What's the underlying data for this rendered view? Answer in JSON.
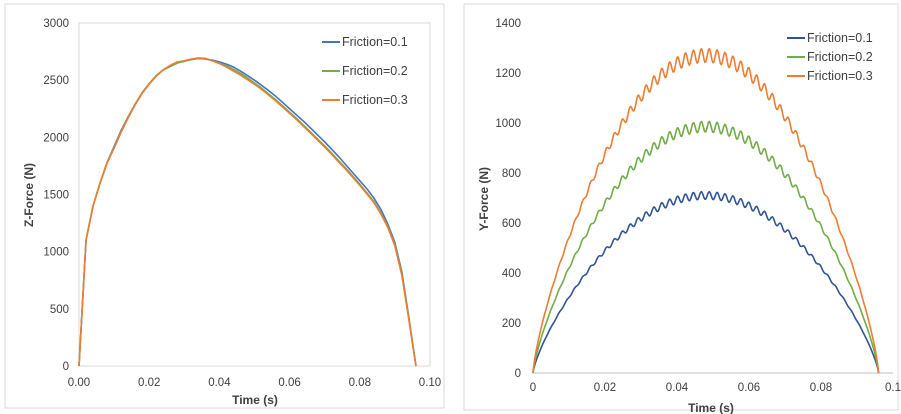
{
  "chart_data": [
    {
      "type": "line",
      "title": "",
      "xlabel": "Time (s)",
      "ylabel": "Z-Force (N)",
      "xlim": [
        0,
        0.1
      ],
      "ylim": [
        0,
        3000
      ],
      "xticks": [
        "0.00",
        "0.02",
        "0.04",
        "0.06",
        "0.08",
        "0.10"
      ],
      "yticks": [
        "0",
        "500",
        "1000",
        "1500",
        "2000",
        "2500",
        "3000"
      ],
      "grid": false,
      "legend_position": "top-right",
      "series": [
        {
          "name": "Friction=0.1",
          "color": "#4472C4",
          "x": [
            0,
            0.002,
            0.004,
            0.006,
            0.008,
            0.01,
            0.012,
            0.014,
            0.016,
            0.018,
            0.02,
            0.022,
            0.024,
            0.026,
            0.028,
            0.03,
            0.032,
            0.034,
            0.036,
            0.038,
            0.04,
            0.042,
            0.044,
            0.046,
            0.048,
            0.05,
            0.052,
            0.054,
            0.056,
            0.058,
            0.06,
            0.062,
            0.064,
            0.066,
            0.068,
            0.07,
            0.072,
            0.074,
            0.076,
            0.078,
            0.08,
            0.082,
            0.084,
            0.086,
            0.088,
            0.09,
            0.092,
            0.094,
            0.096
          ],
          "y": [
            0,
            1100,
            1400,
            1600,
            1780,
            1920,
            2060,
            2180,
            2290,
            2390,
            2470,
            2540,
            2590,
            2620,
            2650,
            2670,
            2680,
            2690,
            2685,
            2675,
            2660,
            2640,
            2615,
            2580,
            2540,
            2500,
            2455,
            2410,
            2360,
            2305,
            2250,
            2195,
            2140,
            2080,
            2020,
            1960,
            1895,
            1830,
            1760,
            1690,
            1620,
            1550,
            1470,
            1370,
            1240,
            1080,
            820,
            420,
            0
          ]
        },
        {
          "name": "Friction=0.2",
          "color": "#70AD47",
          "x": [
            0,
            0.002,
            0.004,
            0.006,
            0.008,
            0.01,
            0.012,
            0.014,
            0.016,
            0.018,
            0.02,
            0.022,
            0.024,
            0.026,
            0.028,
            0.03,
            0.032,
            0.034,
            0.036,
            0.038,
            0.04,
            0.042,
            0.044,
            0.046,
            0.048,
            0.05,
            0.052,
            0.054,
            0.056,
            0.058,
            0.06,
            0.062,
            0.064,
            0.066,
            0.068,
            0.07,
            0.072,
            0.074,
            0.076,
            0.078,
            0.08,
            0.082,
            0.084,
            0.086,
            0.088,
            0.09,
            0.092,
            0.094,
            0.096
          ],
          "y": [
            0,
            1100,
            1400,
            1600,
            1780,
            1910,
            2050,
            2175,
            2290,
            2390,
            2470,
            2540,
            2590,
            2625,
            2650,
            2665,
            2680,
            2690,
            2685,
            2670,
            2650,
            2625,
            2595,
            2560,
            2520,
            2475,
            2430,
            2380,
            2330,
            2275,
            2220,
            2165,
            2105,
            2045,
            1985,
            1925,
            1860,
            1795,
            1730,
            1660,
            1590,
            1515,
            1440,
            1340,
            1220,
            1060,
            800,
            410,
            0
          ]
        },
        {
          "name": "Friction=0.3",
          "color": "#ED7D31",
          "x": [
            0,
            0.002,
            0.004,
            0.006,
            0.008,
            0.01,
            0.012,
            0.014,
            0.016,
            0.018,
            0.02,
            0.022,
            0.024,
            0.026,
            0.028,
            0.03,
            0.032,
            0.034,
            0.036,
            0.038,
            0.04,
            0.042,
            0.044,
            0.046,
            0.048,
            0.05,
            0.052,
            0.054,
            0.056,
            0.058,
            0.06,
            0.062,
            0.064,
            0.066,
            0.068,
            0.07,
            0.072,
            0.074,
            0.076,
            0.078,
            0.08,
            0.082,
            0.084,
            0.086,
            0.088,
            0.09,
            0.092,
            0.094,
            0.096
          ],
          "y": [
            0,
            1100,
            1400,
            1600,
            1775,
            1905,
            2045,
            2170,
            2285,
            2385,
            2465,
            2535,
            2590,
            2630,
            2660,
            2670,
            2685,
            2695,
            2690,
            2670,
            2645,
            2615,
            2580,
            2545,
            2505,
            2465,
            2420,
            2370,
            2320,
            2265,
            2210,
            2155,
            2095,
            2035,
            1975,
            1915,
            1850,
            1785,
            1720,
            1650,
            1580,
            1505,
            1430,
            1330,
            1210,
            1050,
            790,
            400,
            0
          ]
        }
      ]
    },
    {
      "type": "line",
      "title": "",
      "xlabel": "Time (s)",
      "ylabel": "Y-Force (N)",
      "xlim": [
        0,
        0.1
      ],
      "ylim": [
        0,
        1400
      ],
      "xticks": [
        "0",
        "0.02",
        "0.04",
        "0.06",
        "0.08",
        "0.1"
      ],
      "yticks": [
        "0",
        "200",
        "400",
        "600",
        "800",
        "1000",
        "1200",
        "1400"
      ],
      "grid": false,
      "legend_position": "top-right",
      "series": [
        {
          "name": "Friction=0.1",
          "color": "#2F5597",
          "peak": 710,
          "end_time": 0.096
        },
        {
          "name": "Friction=0.2",
          "color": "#70AD47",
          "peak": 985,
          "end_time": 0.096
        },
        {
          "name": "Friction=0.3",
          "color": "#ED7D31",
          "peak": 1270,
          "end_time": 0.096
        }
      ]
    }
  ]
}
